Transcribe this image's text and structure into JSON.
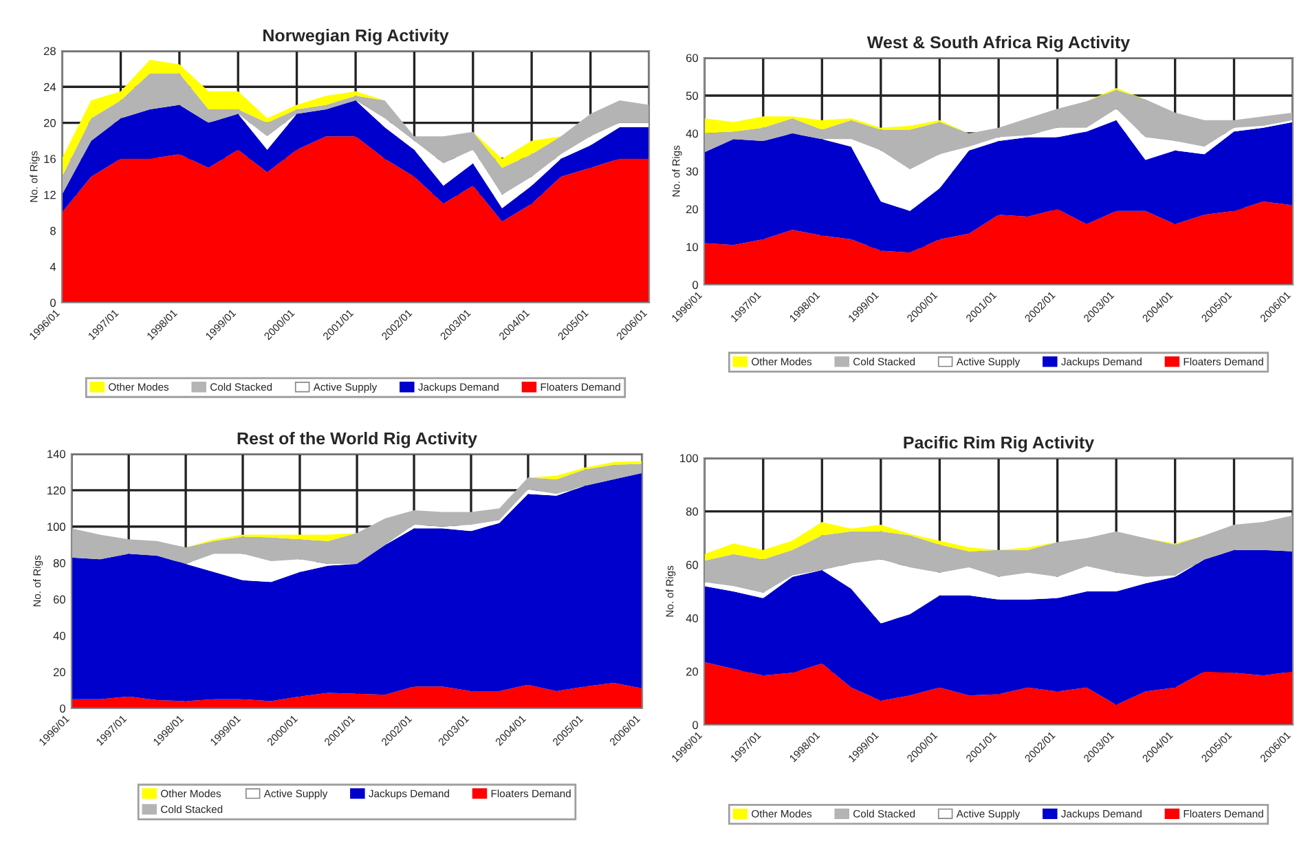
{
  "chart_data": [
    {
      "type": "area",
      "stacked": true,
      "title": "Norwegian Rig Activity",
      "ylabel": "No. of Rigs",
      "grid": true,
      "legend": "bottom",
      "x": [
        "1996-01",
        "1996-07",
        "1997-01",
        "1997-07",
        "1998-01",
        "1998-07",
        "1999-01",
        "1999-07",
        "2000-01",
        "2000-07",
        "2001-01",
        "2001-07",
        "2002-01",
        "2002-07",
        "2003-01",
        "2003-07",
        "2004-01",
        "2004-07",
        "2005-01",
        "2005-07",
        "2006-01"
      ],
      "xlim": [
        "1996-01",
        "2006-01"
      ],
      "xticks": [
        {
          "value": "1996-01",
          "label": "1996/01"
        },
        {
          "value": "1997-01",
          "label": "1997/01"
        },
        {
          "value": "1998-01",
          "label": "1998/01"
        },
        {
          "value": "1999-01",
          "label": "1999/01"
        },
        {
          "value": "2000-01",
          "label": "2000/01"
        },
        {
          "value": "2001-01",
          "label": "2001/01"
        },
        {
          "value": "2002-01",
          "label": "2002/01"
        },
        {
          "value": "2003-01",
          "label": "2003/01"
        },
        {
          "value": "2004-01",
          "label": "2004/01"
        },
        {
          "value": "2005-01",
          "label": "2005/01"
        },
        {
          "value": "2006-01",
          "label": "2006/01"
        }
      ],
      "ylim": [
        0,
        28
      ],
      "yticks": [
        0,
        4,
        8,
        12,
        16,
        20,
        24,
        28
      ],
      "series": [
        {
          "name": "Floaters Demand",
          "color": "#ff0000",
          "values": [
            10,
            14,
            16,
            16,
            16.5,
            15,
            17,
            14.5,
            17,
            18.5,
            18.5,
            16,
            14,
            11,
            13,
            9,
            11,
            14,
            15,
            16,
            16
          ]
        },
        {
          "name": "Jackups Demand",
          "color": "#0000cc",
          "values": [
            2,
            4,
            4.5,
            5.5,
            5.5,
            5,
            4,
            2.5,
            4,
            3,
            4,
            3.5,
            3,
            2,
            2.5,
            1.5,
            2,
            2,
            2.5,
            3.5,
            3.5
          ]
        },
        {
          "name": "Active Supply",
          "color": "#ffffff",
          "values": [
            0,
            0,
            0,
            0,
            0,
            0,
            0,
            1.5,
            0,
            0,
            0,
            1,
            1,
            2.5,
            1.5,
            1.5,
            1,
            0.5,
            1,
            0.5,
            0.5
          ]
        },
        {
          "name": "Cold Stacked",
          "color": "#b4b4b4",
          "values": [
            2,
            2.5,
            2,
            4,
            3.5,
            1.5,
            0.5,
            1.5,
            0.5,
            0.5,
            0.5,
            2,
            0.5,
            3,
            2,
            3,
            2.5,
            2,
            2.5,
            2.5,
            2
          ]
        },
        {
          "name": "Other Modes",
          "color": "#ffff00",
          "values": [
            2,
            2,
            1,
            1.5,
            1,
            2,
            2,
            0.5,
            0.5,
            1,
            0.5,
            0,
            0,
            0,
            0,
            1,
            1.5,
            0,
            0,
            0,
            0
          ]
        }
      ]
    },
    {
      "type": "area",
      "stacked": true,
      "title": "West & South Africa Rig Activity",
      "ylabel": "No. of Rigs",
      "grid": true,
      "legend": "bottom",
      "x": [
        "1996-01",
        "1996-07",
        "1997-01",
        "1997-07",
        "1998-01",
        "1998-07",
        "1999-01",
        "1999-07",
        "2000-01",
        "2000-07",
        "2001-01",
        "2001-07",
        "2002-01",
        "2002-07",
        "2003-01",
        "2003-07",
        "2004-01",
        "2004-07",
        "2005-01",
        "2005-07",
        "2006-01"
      ],
      "xlim": [
        "1996-01",
        "2006-01"
      ],
      "xticks": [
        {
          "value": "1996-01",
          "label": "1996/01"
        },
        {
          "value": "1997-01",
          "label": "1997/01"
        },
        {
          "value": "1998-01",
          "label": "1998/01"
        },
        {
          "value": "1999-01",
          "label": "1999/01"
        },
        {
          "value": "2000-01",
          "label": "2000/01"
        },
        {
          "value": "2001-01",
          "label": "2001/01"
        },
        {
          "value": "2002-01",
          "label": "2002/01"
        },
        {
          "value": "2003-01",
          "label": "2003/01"
        },
        {
          "value": "2004-01",
          "label": "2004/01"
        },
        {
          "value": "2005-01",
          "label": "2005/01"
        },
        {
          "value": "2006-01",
          "label": "2006/01"
        }
      ],
      "ylim": [
        0,
        60
      ],
      "yticks": [
        0,
        10,
        20,
        30,
        40,
        50,
        60
      ],
      "series": [
        {
          "name": "Floaters Demand",
          "color": "#ff0000",
          "values": [
            11,
            10.5,
            12,
            14.5,
            13,
            12,
            9,
            8.5,
            12,
            13.5,
            18.5,
            18,
            20,
            16,
            19.5,
            19.5,
            16,
            18.5,
            19.5,
            22,
            21
          ]
        },
        {
          "name": "Jackups Demand",
          "color": "#0000cc",
          "values": [
            24,
            28,
            26,
            25.5,
            25.5,
            24.5,
            13,
            11,
            13.5,
            22,
            19.5,
            21,
            19,
            24.5,
            24,
            13.5,
            19.5,
            16,
            21,
            19.5,
            22
          ]
        },
        {
          "name": "Active Supply",
          "color": "#ffffff",
          "values": [
            0,
            0,
            0,
            0,
            0,
            2,
            13.5,
            11,
            9,
            1,
            1,
            0.5,
            2.5,
            1,
            3,
            6,
            2.5,
            2,
            1,
            0.5,
            0.5
          ]
        },
        {
          "name": "Cold Stacked",
          "color": "#b4b4b4",
          "values": [
            5,
            2,
            3.5,
            4,
            2.5,
            5,
            5.5,
            10.5,
            8.5,
            3.5,
            2.5,
            4.5,
            5,
            7,
            5,
            10,
            7.5,
            7,
            2,
            2.5,
            2
          ]
        },
        {
          "name": "Other Modes",
          "color": "#ffff00",
          "values": [
            4,
            2.5,
            3,
            0.5,
            2.5,
            0.5,
            0.5,
            1,
            0.5,
            0,
            0,
            0,
            0,
            0,
            0.5,
            0,
            0,
            0,
            0,
            0,
            0
          ]
        }
      ]
    },
    {
      "type": "area",
      "stacked": true,
      "title": "Rest of the World Rig Activity",
      "ylabel": "No. of Rigs",
      "grid": true,
      "legend": "bottom",
      "x": [
        "1996-01",
        "1996-07",
        "1997-01",
        "1997-07",
        "1998-01",
        "1998-07",
        "1999-01",
        "1999-07",
        "2000-01",
        "2000-07",
        "2001-01",
        "2001-07",
        "2002-01",
        "2002-07",
        "2003-01",
        "2003-07",
        "2004-01",
        "2004-07",
        "2005-01",
        "2005-07",
        "2006-01"
      ],
      "xlim": [
        "1996-01",
        "2006-01"
      ],
      "xticks": [
        {
          "value": "1996-01",
          "label": "1996/01"
        },
        {
          "value": "1997-01",
          "label": "1997/01"
        },
        {
          "value": "1998-01",
          "label": "1998/01"
        },
        {
          "value": "1999-01",
          "label": "1999/01"
        },
        {
          "value": "2000-01",
          "label": "2000/01"
        },
        {
          "value": "2001-01",
          "label": "2001/01"
        },
        {
          "value": "2002-01",
          "label": "2002/01"
        },
        {
          "value": "2003-01",
          "label": "2003/01"
        },
        {
          "value": "2004-01",
          "label": "2004/01"
        },
        {
          "value": "2005-01",
          "label": "2005/01"
        },
        {
          "value": "2006-01",
          "label": "2006/01"
        }
      ],
      "ylim": [
        0,
        140
      ],
      "yticks": [
        0,
        20,
        40,
        60,
        80,
        100,
        120,
        140
      ],
      "series": [
        {
          "name": "Floaters Demand",
          "color": "#ff0000",
          "values": [
            5,
            5,
            6.5,
            4.5,
            4,
            5,
            5,
            4,
            6.5,
            8.5,
            8,
            7.5,
            12,
            12,
            9.5,
            9.5,
            13,
            9.5,
            12,
            14,
            11
          ]
        },
        {
          "name": "Jackups Demand",
          "color": "#0000cc",
          "values": [
            78,
            77,
            78.5,
            79.5,
            75.5,
            70,
            65.5,
            65.5,
            68.5,
            70,
            71.5,
            82.5,
            87,
            87,
            88,
            92.5,
            105,
            107.5,
            110.5,
            112,
            118.5
          ]
        },
        {
          "name": "Active Supply",
          "color": "#ffffff",
          "values": [
            0,
            0,
            0,
            0,
            0,
            10,
            14.5,
            11.5,
            7,
            1,
            0,
            0,
            2,
            1,
            3.5,
            1.5,
            2.5,
            1,
            0,
            0,
            0
          ]
        },
        {
          "name": "Cold Stacked",
          "color": "#b4b4b4",
          "values": [
            16,
            13.5,
            8,
            8,
            9,
            7,
            9.5,
            13,
            11,
            12.5,
            17,
            14.5,
            8,
            8,
            7,
            6.5,
            6.5,
            8,
            9,
            8,
            5
          ]
        },
        {
          "name": "Other Modes",
          "color": "#ffff00",
          "values": [
            0,
            0,
            0,
            0,
            0,
            1,
            1,
            1.5,
            2.5,
            3.5,
            0,
            0,
            0,
            0,
            0,
            0,
            0,
            2,
            1,
            1.5,
            1.5
          ]
        }
      ]
    },
    {
      "type": "area",
      "stacked": true,
      "title": "Pacific Rim Rig Activity",
      "ylabel": "No. of Rigs",
      "grid": true,
      "legend": "bottom",
      "x": [
        "1996-01",
        "1996-07",
        "1997-01",
        "1997-07",
        "1998-01",
        "1998-07",
        "1999-01",
        "1999-07",
        "2000-01",
        "2000-07",
        "2001-01",
        "2001-07",
        "2002-01",
        "2002-07",
        "2003-01",
        "2003-07",
        "2004-01",
        "2004-07",
        "2005-01",
        "2005-07",
        "2006-01"
      ],
      "xlim": [
        "1996-01",
        "2006-01"
      ],
      "xticks": [
        {
          "value": "1996-01",
          "label": "1996/01"
        },
        {
          "value": "1997-01",
          "label": "1997/01"
        },
        {
          "value": "1998-01",
          "label": "1998/01"
        },
        {
          "value": "1999-01",
          "label": "1999/01"
        },
        {
          "value": "2000-01",
          "label": "2000/01"
        },
        {
          "value": "2001-01",
          "label": "2001/01"
        },
        {
          "value": "2002-01",
          "label": "2002/01"
        },
        {
          "value": "2003-01",
          "label": "2003/01"
        },
        {
          "value": "2004-01",
          "label": "2004/01"
        },
        {
          "value": "2005-01",
          "label": "2005/01"
        },
        {
          "value": "2006-01",
          "label": "2006/01"
        }
      ],
      "ylim": [
        0,
        100
      ],
      "yticks": [
        0,
        20,
        40,
        60,
        80,
        100
      ],
      "series": [
        {
          "name": "Floaters Demand",
          "color": "#ff0000",
          "values": [
            23.5,
            21,
            18.5,
            19.5,
            23,
            14,
            9,
            11,
            14,
            11,
            11.5,
            14,
            12.5,
            14,
            7.5,
            12.5,
            14,
            20,
            19.5,
            18.5,
            20
          ]
        },
        {
          "name": "Jackups Demand",
          "color": "#0000cc",
          "values": [
            28.5,
            29,
            29,
            36,
            35,
            37,
            29,
            30.5,
            34.5,
            37.5,
            35.5,
            33,
            35,
            36,
            42.5,
            40.5,
            41.5,
            42,
            46,
            47,
            45
          ]
        },
        {
          "name": "Active Supply",
          "color": "#ffffff",
          "values": [
            1.5,
            2,
            2,
            0.5,
            0,
            9.5,
            24,
            17.5,
            8.5,
            10.5,
            8.5,
            10,
            8,
            9.5,
            7,
            2.5,
            0.5,
            0,
            0,
            0,
            0
          ]
        },
        {
          "name": "Cold Stacked",
          "color": "#b4b4b4",
          "values": [
            8,
            12,
            12.5,
            9.5,
            13,
            12,
            10.5,
            12,
            10.5,
            6,
            10,
            8.5,
            13,
            10.5,
            15.5,
            14.5,
            11.5,
            9,
            9.5,
            10.5,
            13.5
          ]
        },
        {
          "name": "Other Modes",
          "color": "#ffff00",
          "values": [
            2.5,
            4,
            3.5,
            3.5,
            5,
            1,
            2.5,
            0.5,
            1.5,
            1.5,
            0,
            1,
            0,
            0,
            0,
            0,
            0.5,
            0,
            0,
            0,
            0
          ]
        }
      ]
    }
  ]
}
